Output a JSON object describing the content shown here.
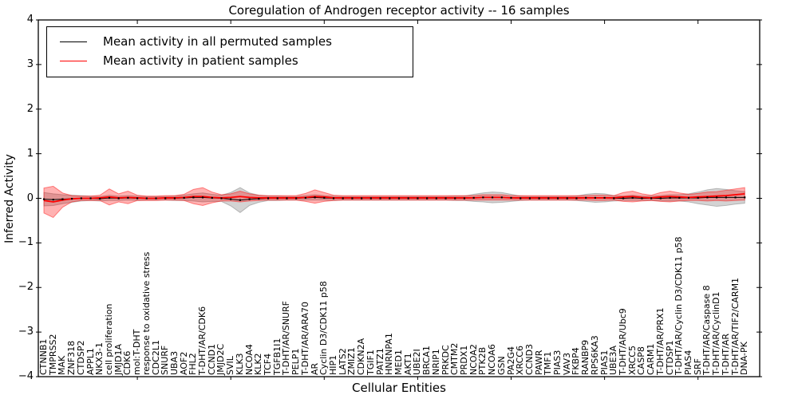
{
  "chart_data": {
    "type": "line",
    "title": "Coregulation of Androgen receptor activity -- 16 samples",
    "xlabel": "Cellular Entities",
    "ylabel": "Inferred Activity",
    "ylim": [
      -4,
      4
    ],
    "ytick_labels": [
      "4",
      "3",
      "2",
      "1",
      "0",
      "−1",
      "−2",
      "−3",
      "−4"
    ],
    "yticks": [
      4,
      3,
      2,
      1,
      0,
      -1,
      -2,
      -3,
      -4
    ],
    "xtick_positions": [
      10,
      20,
      30,
      40,
      50,
      60,
      70
    ],
    "grid": false,
    "legend_position": "upper left",
    "categories": [
      "CTNNB1",
      "TMPRSS2",
      "MAK",
      "ZNF318",
      "CTDSP2",
      "APPL1",
      "NKX3-1",
      "cell proliferation",
      "JMJD1A",
      "CDK6",
      "mol:T-DHT",
      "response to oxidative stress",
      "CDC2L1",
      "SNURF",
      "UBA3",
      "AOF2",
      "FHL2",
      "T-DHT/AR/CDK6",
      "CCND1",
      "JMJD2C",
      "SVIL",
      "KLK3",
      "NCOA4",
      "KLK2",
      "TCF4",
      "TGFB1I1",
      "T-DHT/AR/SNURF",
      "PELP1",
      "T-DHT/AR/ARA70",
      "AR",
      "Cyclin D3/CDK11 p58",
      "HIP1",
      "LATS2",
      "ZMIZ1",
      "CDKN2A",
      "TGIF1",
      "PATZ1",
      "HNRNPA1",
      "MED1",
      "AKT1",
      "UBE2I",
      "BRCA1",
      "NRIP1",
      "PRKDC",
      "CMTM2",
      "PRDX1",
      "NCOA2",
      "PTK2B",
      "NCOA6",
      "GSN",
      "PA2G4",
      "XRCC6",
      "CCND3",
      "PAWR",
      "TMF1",
      "PIAS3",
      "VAV3",
      "FKBP4",
      "RANBP9",
      "RPS6KA3",
      "PIAS1",
      "UBE3A",
      "T-DHT/AR/Ubc9",
      "XRCC5",
      "CASP8",
      "CARM1",
      "T-DHT/AR/PRX1",
      "CTDSP1",
      "T-DHT/AR/Cyclin D3/CDK11 p58",
      "PIAS4",
      "SRF",
      "T-DHT/AR/Caspase 8",
      "T-DHT/AR/CyclinD1",
      "T-DHT/AR",
      "T-DHT/AR/TIF2/CARM1",
      "DNA-PK"
    ],
    "series": [
      {
        "name": "Mean activity in all permuted samples",
        "color": "#000000",
        "marker": "square-dot",
        "values": [
          -0.02,
          -0.03,
          -0.02,
          -0.01,
          0,
          0,
          -0.01,
          0.01,
          0,
          0.01,
          0,
          0,
          0,
          0,
          0,
          0.01,
          0.02,
          0.02,
          0.01,
          0,
          -0.02,
          -0.04,
          -0.02,
          -0.01,
          0,
          0,
          0,
          0,
          0.01,
          0.02,
          0.01,
          0,
          0,
          0,
          0,
          0,
          0,
          0,
          0,
          0,
          0,
          0,
          0,
          0,
          0,
          0,
          0.01,
          0.02,
          0.02,
          0.02,
          0.01,
          0,
          0,
          0,
          0,
          0,
          0,
          0,
          0.01,
          0.01,
          0.01,
          0,
          0,
          0.01,
          0,
          0,
          0,
          0.01,
          0.01,
          0.01,
          0.01,
          0.02,
          0.02,
          0.02,
          0.02,
          0.02
        ],
        "band_color": "#808080",
        "band_opacity": 0.35,
        "band_half_widths": [
          0.15,
          0.13,
          0.1,
          0.08,
          0.06,
          0.05,
          0.05,
          0.06,
          0.05,
          0.05,
          0.05,
          0.04,
          0.04,
          0.04,
          0.05,
          0.06,
          0.08,
          0.1,
          0.08,
          0.07,
          0.15,
          0.28,
          0.14,
          0.08,
          0.05,
          0.05,
          0.04,
          0.04,
          0.05,
          0.06,
          0.05,
          0.05,
          0.04,
          0.04,
          0.04,
          0.04,
          0.04,
          0.04,
          0.04,
          0.04,
          0.04,
          0.04,
          0.04,
          0.04,
          0.05,
          0.05,
          0.08,
          0.1,
          0.12,
          0.11,
          0.08,
          0.05,
          0.04,
          0.04,
          0.04,
          0.04,
          0.04,
          0.05,
          0.08,
          0.1,
          0.09,
          0.06,
          0.05,
          0.06,
          0.05,
          0.05,
          0.06,
          0.07,
          0.07,
          0.09,
          0.13,
          0.17,
          0.2,
          0.18,
          0.15,
          0.13
        ]
      },
      {
        "name": "Mean activity in patient samples",
        "color": "#ff0000",
        "marker": "none",
        "values": [
          -0.05,
          -0.08,
          -0.04,
          -0.01,
          0,
          0,
          0.01,
          0.03,
          0.01,
          0.02,
          0.01,
          0,
          0,
          0.01,
          0.01,
          0.02,
          0.04,
          0.04,
          0.02,
          0.01,
          0.02,
          0.04,
          0.02,
          0.01,
          0.01,
          0.01,
          0.01,
          0.01,
          0.02,
          0.04,
          0.03,
          0.01,
          0.01,
          0.01,
          0.01,
          0.01,
          0.01,
          0.01,
          0.01,
          0.01,
          0.01,
          0.01,
          0.01,
          0.01,
          0.01,
          0.01,
          0.01,
          0.02,
          0.02,
          0.02,
          0.01,
          0.01,
          0.01,
          0.01,
          0.01,
          0.01,
          0.01,
          0.01,
          0.01,
          0.01,
          0.01,
          0.01,
          0.03,
          0.04,
          0.02,
          0.01,
          0.03,
          0.04,
          0.03,
          0.02,
          0.03,
          0.04,
          0.05,
          0.06,
          0.08,
          0.1
        ],
        "band_color": "#ff0000",
        "band_opacity": 0.3,
        "band_half_widths": [
          0.28,
          0.35,
          0.16,
          0.07,
          0.05,
          0.05,
          0.06,
          0.18,
          0.09,
          0.14,
          0.06,
          0.05,
          0.05,
          0.05,
          0.05,
          0.07,
          0.16,
          0.2,
          0.12,
          0.07,
          0.08,
          0.12,
          0.08,
          0.06,
          0.05,
          0.05,
          0.05,
          0.05,
          0.09,
          0.15,
          0.1,
          0.06,
          0.05,
          0.05,
          0.05,
          0.05,
          0.05,
          0.05,
          0.05,
          0.05,
          0.05,
          0.05,
          0.05,
          0.05,
          0.05,
          0.05,
          0.05,
          0.06,
          0.06,
          0.06,
          0.05,
          0.05,
          0.05,
          0.05,
          0.05,
          0.05,
          0.05,
          0.05,
          0.05,
          0.06,
          0.06,
          0.05,
          0.1,
          0.12,
          0.08,
          0.06,
          0.1,
          0.12,
          0.09,
          0.07,
          0.08,
          0.1,
          0.1,
          0.12,
          0.13,
          0.14
        ]
      }
    ]
  }
}
